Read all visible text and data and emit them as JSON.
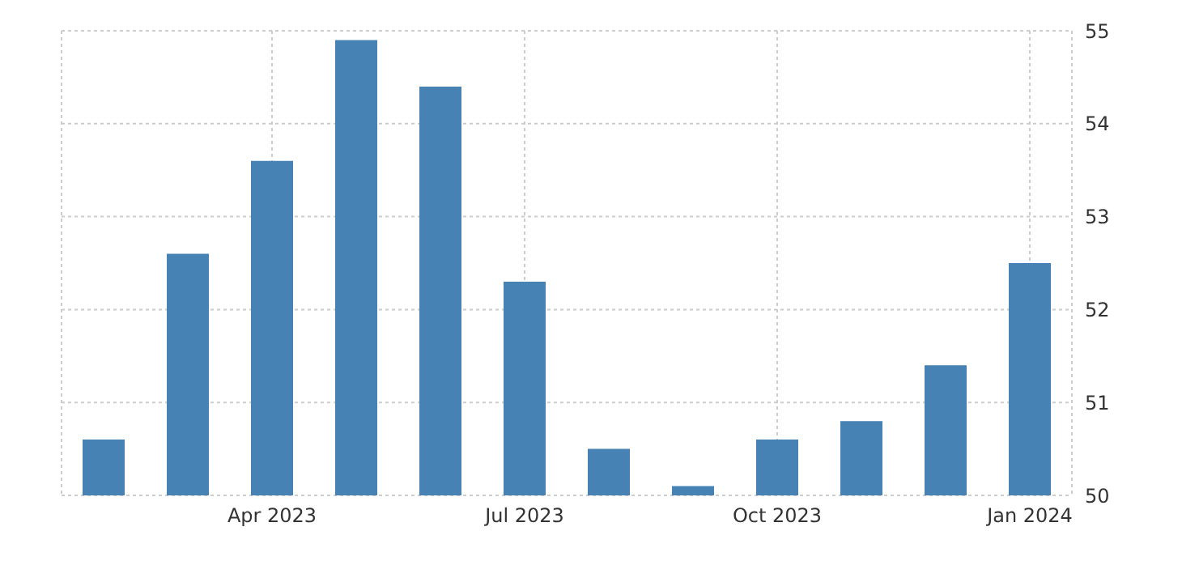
{
  "chart_data": {
    "type": "bar",
    "categories": [
      null,
      null,
      "Apr 2023",
      null,
      null,
      "Jul 2023",
      null,
      null,
      "Oct 2023",
      null,
      null,
      "Jan 2024"
    ],
    "values": [
      50.6,
      52.6,
      53.6,
      54.9,
      54.4,
      52.3,
      50.5,
      50.1,
      50.6,
      50.8,
      51.4,
      52.5
    ],
    "color": "#4682b4",
    "ylim": [
      50,
      55
    ],
    "yticks": [
      50,
      51,
      52,
      53,
      54,
      55
    ],
    "grid": true
  }
}
